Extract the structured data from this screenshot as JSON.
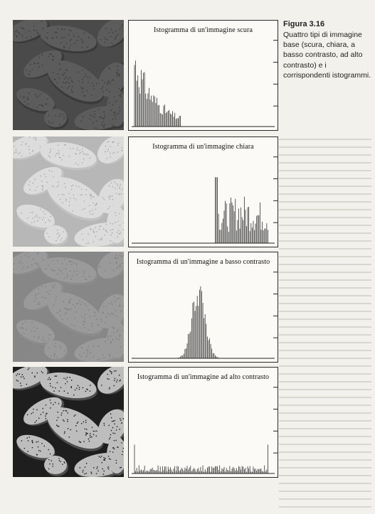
{
  "figure": {
    "number": "Figura 3.16",
    "text": "Quattro tipi di immagine base (scura, chiara, a basso contrasto, ad alto contrasto) e i corrispondenti istogrammi."
  },
  "panels": [
    {
      "histogram_title": "Istogramma di un'immagine scura",
      "kind": "dark",
      "colors": {
        "bg": "#4a4a4a",
        "pod": "#5c5c5c",
        "dot": "#393939",
        "shade": "#3a3a3a"
      }
    },
    {
      "histogram_title": "Istogramma di un'immagine chiara",
      "kind": "light",
      "colors": {
        "bg": "#b7b7b7",
        "pod": "#dcdcdc",
        "dot": "#a8a8a8",
        "shade": "#c2c2c2"
      }
    },
    {
      "histogram_title": "Istogramma di un'immagine a basso contrasto",
      "kind": "low",
      "colors": {
        "bg": "#878787",
        "pod": "#9a9a9a",
        "dot": "#7c7c7c",
        "shade": "#8c8c8c"
      }
    },
    {
      "histogram_title": "Istogramma di un'immagine ad alto contrasto",
      "kind": "high",
      "colors": {
        "bg": "#1e1e1e",
        "pod": "#bdbdbd",
        "dot": "#1a1a1a",
        "shade": "#4d4d4d"
      }
    }
  ]
}
